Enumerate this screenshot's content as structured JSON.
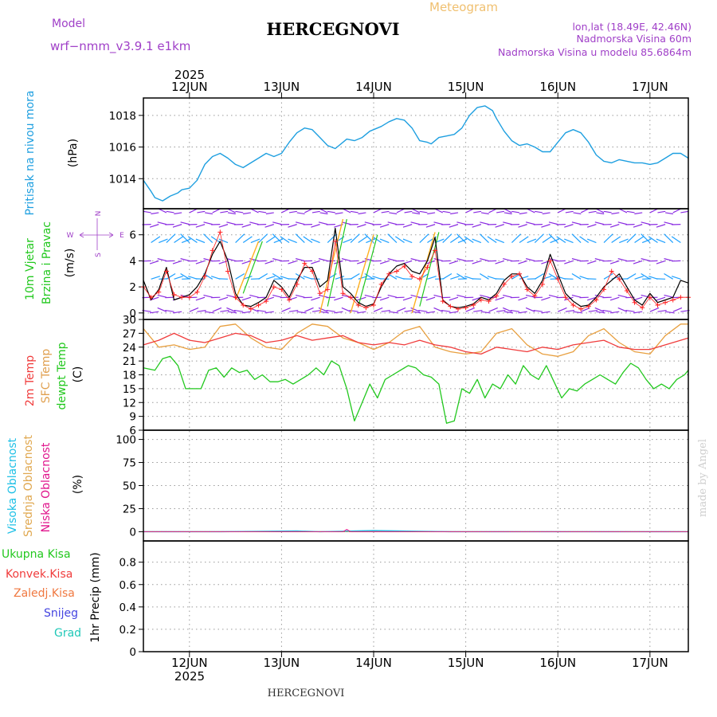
{
  "header": {
    "meteogram": "Meteogram",
    "model_label": "Model",
    "model_name": "wrf−nmm_v3.9.1  e1km",
    "station": "HERCEGNOVI",
    "lonlat": "lon,lat (18.49E, 42.46N)",
    "altitude": "Nadmorska Visina 60m",
    "model_altitude": "Nadmorska Visina u modelu 85.6864m",
    "footer_station": "HERCEGNOVI",
    "watermark": "made by Angel",
    "year": "2025"
  },
  "colors": {
    "pressure": "#1e9fe0",
    "speed": "#000000",
    "gust": "#ff2020",
    "temp2m": "#f03c3c",
    "sfc": "#e8a040",
    "dewpt": "#22c81e",
    "high_cloud": "#1ec0e6",
    "mid_cloud": "#e0a850",
    "low_cloud": "#e0148c",
    "barb_low": "#8a2be2",
    "barb_high": "#1ea0ff",
    "header_purple": "#a040c8",
    "meteogram_title": "#f0c070"
  },
  "chart_data": {
    "type": "line",
    "x_unit": "hours since 2025-06-11 12:00",
    "x_range": [
      0,
      142
    ],
    "days": [
      "12JUN",
      "13JUN",
      "14JUN",
      "15JUN",
      "16JUN",
      "17JUN"
    ],
    "day_hours": [
      12,
      36,
      60,
      84,
      108,
      132
    ],
    "panels": [
      {
        "id": "pressure",
        "labels": [
          "Pritisak na nivou mora",
          "(hPa)"
        ],
        "ylim": [
          1012.1,
          1019.1
        ],
        "yticks": [
          1014,
          1016,
          1018
        ],
        "series": [
          {
            "id": "mslp",
            "x": [
              0,
              2,
              3,
              5,
              7,
              9,
              10,
              12,
              14,
              16,
              18,
              20,
              22,
              24,
              26,
              28,
              30,
              32,
              34,
              36,
              38,
              40,
              42,
              44,
              46,
              48,
              50,
              52,
              53,
              55,
              57,
              59,
              61,
              62,
              64,
              66,
              68,
              70,
              72,
              74,
              75,
              77,
              79,
              81,
              83,
              85,
              87,
              89,
              91,
              92,
              94,
              96,
              98,
              100,
              102,
              104,
              106,
              108,
              110,
              112,
              114,
              116,
              118,
              120,
              122,
              124,
              126,
              128,
              130,
              132,
              134,
              136,
              138,
              140,
              142
            ],
            "values": [
              1013.9,
              1013.2,
              1012.8,
              1012.6,
              1012.9,
              1013.1,
              1013.3,
              1013.4,
              1013.9,
              1014.9,
              1015.4,
              1015.6,
              1015.3,
              1014.9,
              1014.7,
              1015.0,
              1015.3,
              1015.6,
              1015.4,
              1015.6,
              1016.3,
              1016.9,
              1017.2,
              1017.1,
              1016.6,
              1016.1,
              1015.9,
              1016.3,
              1016.5,
              1016.4,
              1016.6,
              1017.0,
              1017.2,
              1017.3,
              1017.6,
              1017.8,
              1017.7,
              1017.2,
              1016.4,
              1016.3,
              1016.2,
              1016.6,
              1016.7,
              1016.8,
              1017.2,
              1018.0,
              1018.5,
              1018.6,
              1018.3,
              1017.8,
              1017.0,
              1016.4,
              1016.1,
              1016.2,
              1016.0,
              1015.7,
              1015.7,
              1016.3,
              1016.9,
              1017.1,
              1016.9,
              1016.3,
              1015.5,
              1015.1,
              1015.0,
              1015.2,
              1015.1,
              1015.0,
              1015.0,
              1014.9,
              1015.0,
              1015.3,
              1015.6,
              1015.6,
              1015.3
            ]
          }
        ]
      },
      {
        "id": "wind",
        "labels": [
          "10m Vjetar",
          "Brzina i Pravac",
          "(m/s)"
        ],
        "compass": [
          "N",
          "S",
          "W",
          "E"
        ],
        "ylim": [
          -0.5,
          8.0
        ],
        "yticks": [
          0,
          2,
          4,
          6
        ],
        "series": [
          {
            "id": "speed",
            "x": [
              0,
              2,
              4,
              6,
              8,
              10,
              12,
              14,
              16,
              18,
              20,
              22,
              24,
              26,
              28,
              30,
              32,
              34,
              36,
              38,
              40,
              42,
              44,
              46,
              48,
              50,
              52,
              54,
              56,
              58,
              60,
              62,
              64,
              66,
              68,
              70,
              72,
              74,
              76,
              78,
              80,
              82,
              84,
              86,
              88,
              90,
              92,
              94,
              96,
              98,
              100,
              102,
              104,
              106,
              108,
              110,
              112,
              114,
              116,
              118,
              120,
              122,
              124,
              126,
              128,
              130,
              132,
              134,
              136,
              138,
              140,
              142
            ],
            "values": [
              2.5,
              1.0,
              1.8,
              3.5,
              1.0,
              1.2,
              1.4,
              2.0,
              3.0,
              4.5,
              5.5,
              4.0,
              1.5,
              0.6,
              0.5,
              0.8,
              1.2,
              2.5,
              2.0,
              1.2,
              2.5,
              3.5,
              3.5,
              2.0,
              2.5,
              6.5,
              2.0,
              1.5,
              0.8,
              0.5,
              0.7,
              2.0,
              3.0,
              3.6,
              3.8,
              3.2,
              3.0,
              4.0,
              5.8,
              1.0,
              0.5,
              0.4,
              0.5,
              0.7,
              1.2,
              1.0,
              1.5,
              2.5,
              3.0,
              3.0,
              2.0,
              1.5,
              2.5,
              4.5,
              3.0,
              1.5,
              0.9,
              0.5,
              0.6,
              1.2,
              2.0,
              2.5,
              3.0,
              2.0,
              1.0,
              0.6,
              1.5,
              0.8,
              1.0,
              1.2,
              2.5,
              2.3
            ]
          },
          {
            "id": "gust",
            "x": [
              0,
              2,
              4,
              6,
              8,
              10,
              12,
              14,
              16,
              18,
              20,
              22,
              24,
              26,
              28,
              30,
              32,
              34,
              36,
              38,
              40,
              42,
              44,
              46,
              48,
              50,
              52,
              54,
              56,
              58,
              60,
              62,
              64,
              66,
              68,
              70,
              72,
              74,
              76,
              78,
              80,
              82,
              84,
              86,
              88,
              90,
              92,
              94,
              96,
              98,
              100,
              102,
              104,
              106,
              108,
              110,
              112,
              114,
              116,
              118,
              120,
              122,
              124,
              126,
              128,
              130,
              132,
              134,
              136,
              138,
              140,
              142
            ],
            "values": [
              2.0,
              1.2,
              1.6,
              3.2,
              1.4,
              1.2,
              1.2,
              1.6,
              2.8,
              4.8,
              6.2,
              3.2,
              1.2,
              0.6,
              0.3,
              0.6,
              0.9,
              2.0,
              1.8,
              1.0,
              2.2,
              3.8,
              3.2,
              1.5,
              1.8,
              5.5,
              1.5,
              1.2,
              0.6,
              0.4,
              0.6,
              2.2,
              3.0,
              3.2,
              3.6,
              2.8,
              2.6,
              3.5,
              4.8,
              0.9,
              0.5,
              0.3,
              0.4,
              0.6,
              1.0,
              0.9,
              1.3,
              2.2,
              2.8,
              3.0,
              1.8,
              1.3,
              2.2,
              4.0,
              2.6,
              1.2,
              0.6,
              0.3,
              0.5,
              1.0,
              1.8,
              3.2,
              2.6,
              1.7,
              0.8,
              0.4,
              1.2,
              0.6,
              0.8,
              1.0,
              1.2,
              1.2
            ]
          }
        ]
      },
      {
        "id": "temperature",
        "labels": [
          "2m Temp",
          "SFC Temp",
          "dewpt Temp",
          "(C)"
        ],
        "ylim": [
          6,
          30
        ],
        "yticks": [
          6,
          9,
          12,
          15,
          18,
          21,
          24,
          27,
          30
        ],
        "series": [
          {
            "id": "temp2m",
            "x": [
              0,
              4,
              8,
              12,
              16,
              20,
              24,
              28,
              32,
              36,
              40,
              44,
              48,
              52,
              56,
              60,
              64,
              68,
              72,
              76,
              80,
              84,
              88,
              92,
              96,
              100,
              104,
              108,
              112,
              116,
              120,
              124,
              128,
              132,
              136,
              140,
              142
            ],
            "values": [
              24.5,
              25.5,
              27.0,
              25.5,
              25.0,
              26.0,
              27.0,
              26.5,
              25.0,
              25.5,
              26.5,
              25.5,
              26.0,
              26.5,
              25.0,
              24.5,
              25.0,
              24.5,
              25.5,
              24.5,
              24.0,
              23.0,
              22.5,
              24.0,
              23.5,
              23.0,
              24.0,
              23.5,
              24.5,
              25.0,
              25.5,
              24.0,
              23.5,
              23.5,
              24.5,
              25.5,
              26.0
            ]
          },
          {
            "id": "sfc",
            "x": [
              0,
              4,
              8,
              12,
              16,
              20,
              24,
              28,
              32,
              36,
              40,
              44,
              48,
              52,
              56,
              60,
              64,
              68,
              72,
              76,
              80,
              84,
              88,
              92,
              96,
              100,
              104,
              108,
              112,
              116,
              120,
              124,
              128,
              132,
              136,
              140,
              142
            ],
            "values": [
              28.0,
              24.0,
              24.5,
              23.5,
              24.0,
              28.5,
              29.0,
              26.0,
              24.0,
              23.5,
              27.0,
              29.0,
              28.5,
              26.0,
              25.0,
              23.5,
              25.0,
              27.5,
              28.5,
              24.0,
              23.0,
              22.5,
              23.0,
              27.0,
              28.0,
              24.5,
              22.5,
              22.0,
              23.0,
              26.5,
              28.0,
              25.0,
              23.0,
              22.5,
              26.5,
              29.0,
              29.0
            ]
          },
          {
            "id": "dewpt",
            "x": [
              0,
              3,
              5,
              7,
              9,
              11,
              13,
              15,
              17,
              19,
              21,
              23,
              25,
              27,
              29,
              31,
              33,
              35,
              37,
              39,
              41,
              43,
              45,
              47,
              49,
              51,
              53,
              55,
              57,
              59,
              61,
              63,
              65,
              67,
              69,
              71,
              73,
              75,
              77,
              79,
              81,
              83,
              85,
              87,
              89,
              91,
              93,
              95,
              97,
              99,
              101,
              103,
              105,
              107,
              109,
              111,
              113,
              115,
              117,
              119,
              121,
              123,
              125,
              127,
              129,
              131,
              133,
              135,
              137,
              139,
              141,
              142
            ],
            "values": [
              19.5,
              19.0,
              21.5,
              22.0,
              20.0,
              15.0,
              15.0,
              15.0,
              19.0,
              19.5,
              17.5,
              19.5,
              18.5,
              19.0,
              17.0,
              18.0,
              16.5,
              16.5,
              17.0,
              16.0,
              17.0,
              18.0,
              19.5,
              18.0,
              21.0,
              20.0,
              15.0,
              8.0,
              12.0,
              16.0,
              13.0,
              17.0,
              18.0,
              19.0,
              20.0,
              19.5,
              18.0,
              17.5,
              16.0,
              7.5,
              8.0,
              15.0,
              14.0,
              17.0,
              13.0,
              16.0,
              15.0,
              18.0,
              16.0,
              20.0,
              18.0,
              17.0,
              20.0,
              16.5,
              13.0,
              15.0,
              14.5,
              16.0,
              17.0,
              18.0,
              17.0,
              16.0,
              18.5,
              20.5,
              19.5,
              17.0,
              15.0,
              16.0,
              15.0,
              17.0,
              18.0,
              19.0
            ]
          }
        ]
      },
      {
        "id": "clouds",
        "labels": [
          "Visoka Oblacnost",
          "Srednja Oblacnost",
          "Niska Oblacnost",
          "(%)"
        ],
        "ylim": [
          -10,
          110
        ],
        "yticks": [
          0,
          25,
          50,
          75,
          100
        ],
        "series": [
          {
            "id": "high_cloud",
            "x": [
              0,
              20,
              40,
              46,
              60,
              80,
              142
            ],
            "values": [
              0,
              0,
              0.8,
              0,
              1.2,
              0,
              0
            ]
          },
          {
            "id": "mid_cloud",
            "x": [
              0,
              142
            ],
            "values": [
              0,
              0
            ]
          },
          {
            "id": "low_cloud",
            "x": [
              0,
              52,
              53,
              54,
              142
            ],
            "values": [
              0,
              0,
              2.5,
              0,
              0
            ]
          }
        ]
      },
      {
        "id": "precip",
        "labels": [
          "Ukupna Kisa",
          "Konvek.Kisa",
          "Zaledj.Kisa",
          "Snijeg",
          "Grad",
          "1hr Precip (mm)"
        ],
        "ylim": [
          0,
          0.99
        ],
        "yticks": [
          0,
          0.2,
          0.4,
          0.6,
          0.8
        ],
        "series": []
      }
    ]
  }
}
